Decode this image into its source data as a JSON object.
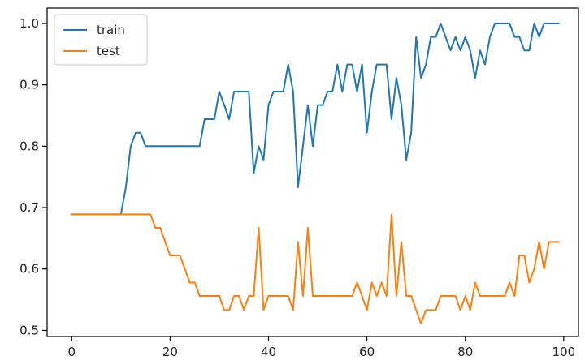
{
  "chart_data": {
    "type": "line",
    "title": "",
    "xlabel": "",
    "ylabel": "",
    "xlim": [
      -5,
      103
    ],
    "ylim": [
      0.49,
      1.025
    ],
    "xticks": [
      "0",
      "20",
      "40",
      "60",
      "80",
      "100"
    ],
    "yticks": [
      "0.5",
      "0.6",
      "0.7",
      "0.8",
      "0.9",
      "1.0"
    ],
    "grid": false,
    "legend": "top-left",
    "x": [
      0,
      1,
      2,
      3,
      4,
      5,
      6,
      7,
      8,
      9,
      10,
      11,
      12,
      13,
      14,
      15,
      16,
      17,
      18,
      19,
      20,
      21,
      22,
      23,
      24,
      25,
      26,
      27,
      28,
      29,
      30,
      31,
      32,
      33,
      34,
      35,
      36,
      37,
      38,
      39,
      40,
      41,
      42,
      43,
      44,
      45,
      46,
      47,
      48,
      49,
      50,
      51,
      52,
      53,
      54,
      55,
      56,
      57,
      58,
      59,
      60,
      61,
      62,
      63,
      64,
      65,
      66,
      67,
      68,
      69,
      70,
      71,
      72,
      73,
      74,
      75,
      76,
      77,
      78,
      79,
      80,
      81,
      82,
      83,
      84,
      85,
      86,
      87,
      88,
      89,
      90,
      91,
      92,
      93,
      94,
      95,
      96,
      97,
      98,
      99
    ],
    "series": [
      {
        "name": "train",
        "color": "#1f77b4",
        "values": [
          0.689,
          0.689,
          0.689,
          0.689,
          0.689,
          0.689,
          0.689,
          0.689,
          0.689,
          0.689,
          0.689,
          0.733,
          0.8,
          0.822,
          0.822,
          0.8,
          0.8,
          0.8,
          0.8,
          0.8,
          0.8,
          0.8,
          0.8,
          0.8,
          0.8,
          0.8,
          0.8,
          0.844,
          0.844,
          0.844,
          0.889,
          0.867,
          0.844,
          0.889,
          0.889,
          0.889,
          0.889,
          0.756,
          0.8,
          0.778,
          0.867,
          0.889,
          0.889,
          0.889,
          0.933,
          0.889,
          0.733,
          0.8,
          0.867,
          0.8,
          0.867,
          0.867,
          0.889,
          0.889,
          0.933,
          0.889,
          0.933,
          0.933,
          0.889,
          0.933,
          0.822,
          0.889,
          0.933,
          0.933,
          0.933,
          0.844,
          0.911,
          0.867,
          0.778,
          0.822,
          0.978,
          0.911,
          0.933,
          0.978,
          0.978,
          1.0,
          0.978,
          0.956,
          0.978,
          0.956,
          0.978,
          0.956,
          0.911,
          0.956,
          0.933,
          0.978,
          1.0,
          1.0,
          1.0,
          1.0,
          0.978,
          0.978,
          0.956,
          0.956,
          1.0,
          0.978,
          1.0,
          1.0,
          1.0,
          1.0
        ]
      },
      {
        "name": "test",
        "color": "#ff7f0e",
        "values": [
          0.689,
          0.689,
          0.689,
          0.689,
          0.689,
          0.689,
          0.689,
          0.689,
          0.689,
          0.689,
          0.689,
          0.689,
          0.689,
          0.689,
          0.689,
          0.689,
          0.689,
          0.667,
          0.667,
          0.644,
          0.622,
          0.622,
          0.622,
          0.6,
          0.578,
          0.578,
          0.556,
          0.556,
          0.556,
          0.556,
          0.556,
          0.533,
          0.533,
          0.556,
          0.556,
          0.533,
          0.556,
          0.556,
          0.667,
          0.533,
          0.556,
          0.556,
          0.556,
          0.556,
          0.556,
          0.533,
          0.644,
          0.556,
          0.667,
          0.556,
          0.556,
          0.556,
          0.556,
          0.556,
          0.556,
          0.556,
          0.556,
          0.556,
          0.578,
          0.556,
          0.533,
          0.578,
          0.556,
          0.578,
          0.556,
          0.689,
          0.556,
          0.644,
          0.556,
          0.556,
          0.533,
          0.511,
          0.533,
          0.533,
          0.533,
          0.556,
          0.556,
          0.556,
          0.556,
          0.533,
          0.556,
          0.533,
          0.578,
          0.556,
          0.556,
          0.556,
          0.556,
          0.556,
          0.556,
          0.578,
          0.556,
          0.622,
          0.622,
          0.578,
          0.6,
          0.644,
          0.6,
          0.644,
          0.644,
          0.644
        ]
      }
    ]
  }
}
